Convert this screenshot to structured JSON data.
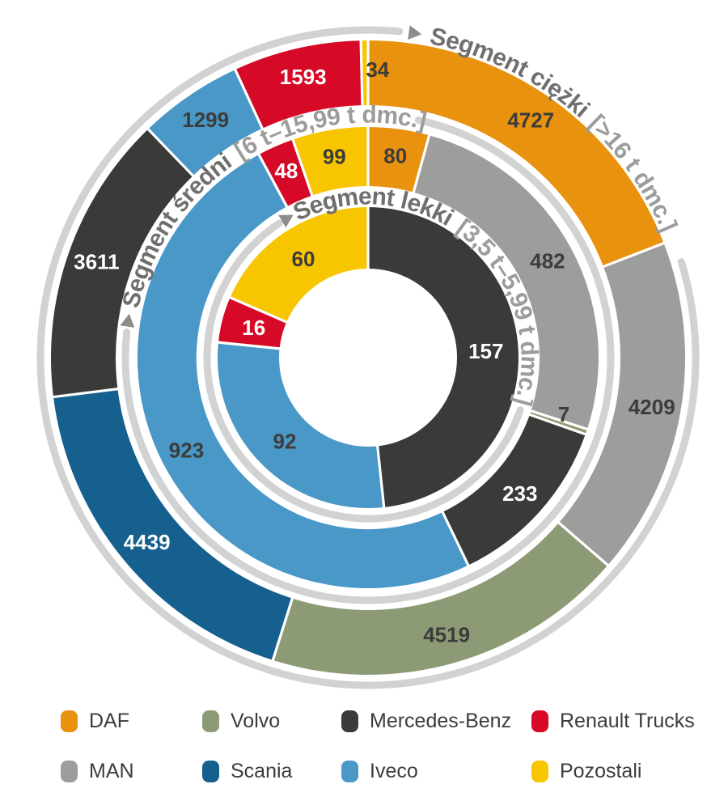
{
  "chart_data": {
    "type": "pie",
    "subtype": "multi-ring-donut",
    "title": "",
    "rings": [
      {
        "id": "segment-ciezki",
        "label": "Segment ciężki",
        "range_label": "[>16 t dmc.]",
        "position": "outer",
        "values": {
          "DAF": 4727,
          "MAN": 4209,
          "Volvo": 4519,
          "Scania": 4439,
          "Mercedes-Benz": 3611,
          "Iveco": 1299,
          "Renault Trucks": 1593,
          "Pozostali": 34
        }
      },
      {
        "id": "segment-sredni",
        "label": "Segment średni",
        "range_label": "[6 t–15,99 t dmc.]",
        "position": "middle",
        "values": {
          "DAF": 80,
          "MAN": 482,
          "Volvo": 7,
          "Scania": 0,
          "Mercedes-Benz": 233,
          "Iveco": 923,
          "Renault Trucks": 48,
          "Pozostali": 99
        }
      },
      {
        "id": "segment-lekki",
        "label": "Segment lekki",
        "range_label": "[3,5 t–5,99 t dmc.]",
        "position": "inner",
        "values": {
          "DAF": 0,
          "MAN": 0,
          "Volvo": 0,
          "Scania": 0,
          "Mercedes-Benz": 157,
          "Iveco": 92,
          "Renault Trucks": 16,
          "Pozostali": 60
        }
      }
    ],
    "brand_order": [
      "DAF",
      "MAN",
      "Volvo",
      "Scania",
      "Mercedes-Benz",
      "Iveco",
      "Renault Trucks",
      "Pozostali"
    ],
    "brand_colors": {
      "DAF": "#E8920E",
      "MAN": "#9D9D9C",
      "Volvo": "#8C9B75",
      "Scania": "#15608E",
      "Mercedes-Benz": "#3A3A38",
      "Iveco": "#4A98C7",
      "Renault Trucks": "#D60926",
      "Pozostali": "#F7C600"
    },
    "value_label_colors": {
      "DAF": "#3C3C3B",
      "MAN": "#3C3C3B",
      "Volvo": "#3C3C3B",
      "Scania": "#FFFFFF",
      "Mercedes-Benz": "#FFFFFF",
      "Iveco": "#3C3C3B",
      "Renault Trucks": "#FFFFFF",
      "Pozostali": "#3C3C3B"
    },
    "legend": {
      "rows": [
        [
          "DAF",
          "Volvo",
          "Mercedes-Benz",
          "Renault Trucks"
        ],
        [
          "MAN",
          "Scania",
          "Iveco",
          "Pozostali"
        ]
      ]
    },
    "style_colors": {
      "ring_guide_arc": "#D2D2D2",
      "ring_title": "#706F6E",
      "ring_range": "#9C9C9B",
      "arrow": "#8C8C8B",
      "separator": "#FFFFFF",
      "background": "#FFFFFF"
    },
    "arrow_icon": "triangle-pointer"
  }
}
